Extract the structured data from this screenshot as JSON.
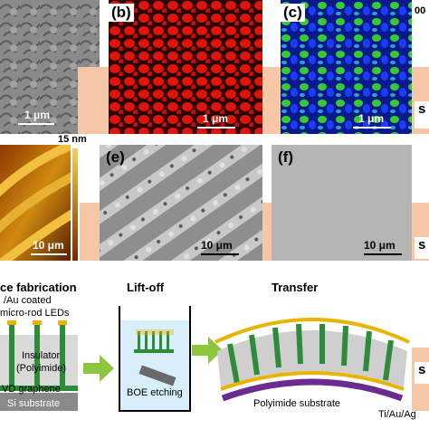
{
  "panels": {
    "a": {
      "scale_label": "1 μm"
    },
    "b": {
      "label": "(b)",
      "scale_label": "1 μm"
    },
    "c": {
      "label": "(c)",
      "scale_label": "1 μm",
      "corner_text": "00"
    },
    "d": {
      "height_label": "15 nm",
      "scale_label": "10 μm"
    },
    "e": {
      "label": "(e)",
      "scale_label": "10 μm"
    },
    "f": {
      "label": "(f)",
      "scale_label": "10 μm"
    }
  },
  "side_labels": [
    "s",
    "s",
    "s"
  ],
  "fabrication": {
    "step1_title": "ce fabrication",
    "step1_line1": "/Au coated",
    "step1_line2": "micro-rod LEDs",
    "insulator_line1": "Insulator",
    "insulator_line2": "(Polyimide)",
    "graphene_label": "VD graphene",
    "si_label": "Si substrate",
    "step2_title": "Lift-off",
    "boe_label": "BOE etching",
    "step3_title": "Transfer",
    "polyimide_label": "Polyimide substrate",
    "metal_label": "Ti/Au/Ag"
  },
  "colors": {
    "peach": "#f6c7a6",
    "green_rod": "#2e8b3a",
    "gold": "#e8b400",
    "purple": "#6a2c91",
    "arrow": "#8cc63f"
  }
}
